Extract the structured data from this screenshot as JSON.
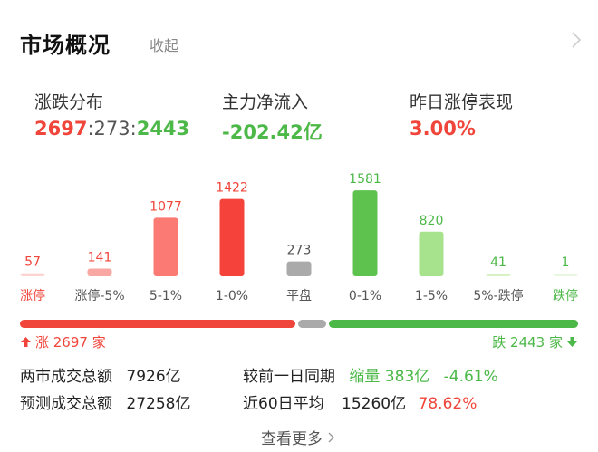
{
  "header": {
    "title": "市场概况",
    "collapse_label": "收起"
  },
  "stats": {
    "breadth": {
      "label": "涨跌分布",
      "up": "2697",
      "sep1": ":",
      "flat": "273",
      "sep2": ":",
      "down": "2443"
    },
    "flow": {
      "label": "主力净流入",
      "value": "-202.42亿"
    },
    "limitup": {
      "label": "昨日涨停表现",
      "value": "3.00%"
    }
  },
  "chart_data": {
    "type": "bar",
    "categories": [
      "涨停",
      "涨停-5%",
      "5-1%",
      "1-0%",
      "平盘",
      "0-1%",
      "1-5%",
      "5%-跌停",
      "跌停"
    ],
    "values": [
      57,
      141,
      1077,
      1422,
      273,
      1581,
      820,
      41,
      1
    ],
    "colors": [
      "#fcd4d2",
      "#f9a7a2",
      "#fb7b74",
      "#f5423a",
      "#aaaaaa",
      "#5ec24f",
      "#a7e28c",
      "#d6f2c3",
      "#e9f7e0"
    ],
    "label_colors": [
      "#f0453a",
      "#f0453a",
      "#f0453a",
      "#f0453a",
      "#555555",
      "#4cb848",
      "#4cb848",
      "#4cb848",
      "#4cb848"
    ],
    "cat_colors": [
      "#f0453a",
      "#555555",
      "#555555",
      "#555555",
      "#555555",
      "#555555",
      "#555555",
      "#555555",
      "#4cb848"
    ],
    "ylim": [
      0,
      1600
    ]
  },
  "breadth_bar": {
    "up_count": 2697,
    "flat_count": 273,
    "down_count": 2443,
    "up_label": "涨 2697 家",
    "down_label": "跌 2443 家",
    "up_color": "#f0453a",
    "flat_color": "#aaaaaa",
    "down_color": "#4cb848"
  },
  "turnover": {
    "today_label": "两市成交总额",
    "today_value": "7926亿",
    "compare_label": "较前一日同期",
    "compare_change": "缩量 383亿",
    "compare_pct": "-4.61%",
    "forecast_label": "预测成交总额",
    "forecast_value": "27258亿",
    "avg_label": "近60日平均",
    "avg_value": "15260亿",
    "avg_pct": "78.62%"
  },
  "footer": {
    "more_label": "查看更多"
  }
}
